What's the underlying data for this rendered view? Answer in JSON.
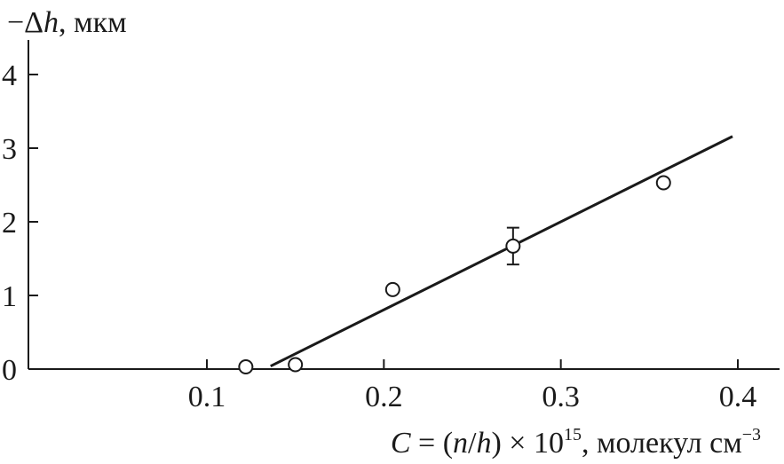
{
  "chart_data": {
    "type": "scatter",
    "y_axis_title": {
      "prefix": "−Δ",
      "variable": "h",
      "suffix": ", мкм"
    },
    "x_axis_title": {
      "variable": "C",
      "equals": " = (",
      "n": "n",
      "slash": "/",
      "h": "h",
      "times": ") × 10",
      "exp": "15",
      "unit": ", молекул см",
      "unit_exp": "−3"
    },
    "x_ticks": [
      {
        "value": 0.1,
        "label": "0.1"
      },
      {
        "value": 0.2,
        "label": "0.2"
      },
      {
        "value": 0.3,
        "label": "0.3"
      },
      {
        "value": 0.4,
        "label": "0.4"
      }
    ],
    "y_ticks": [
      {
        "value": 0,
        "label": "0"
      },
      {
        "value": 1,
        "label": "1"
      },
      {
        "value": 2,
        "label": "2"
      },
      {
        "value": 3,
        "label": "3"
      },
      {
        "value": 4,
        "label": "4"
      }
    ],
    "xlim": [
      0.0,
      0.42
    ],
    "ylim": [
      0,
      4.6
    ],
    "points": [
      {
        "x": 0.122,
        "y": 0.03
      },
      {
        "x": 0.15,
        "y": 0.06
      },
      {
        "x": 0.205,
        "y": 1.08
      },
      {
        "x": 0.273,
        "y": 1.67,
        "err_low": 1.42,
        "err_high": 1.92
      },
      {
        "x": 0.358,
        "y": 2.53
      }
    ],
    "fit_line": {
      "x": [
        0.136,
        0.397
      ],
      "y": [
        0.04,
        3.16
      ]
    },
    "grid": false
  }
}
